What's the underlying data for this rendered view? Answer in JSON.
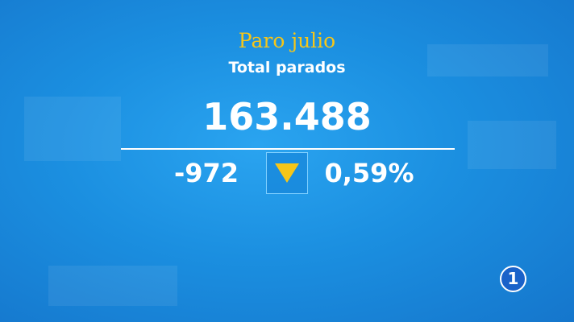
{
  "title": "Paro julio",
  "subtitle": "Total parados",
  "total": "163.488",
  "change": "-972",
  "percent": "0,59%",
  "logo": "1"
}
